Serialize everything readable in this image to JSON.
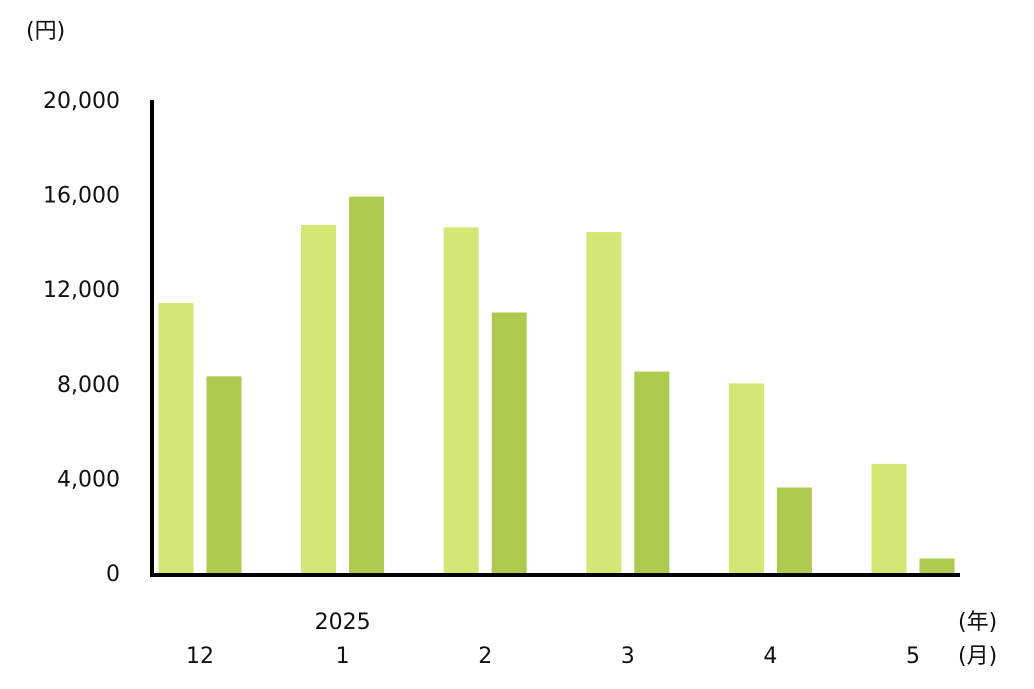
{
  "chart_data": {
    "type": "bar",
    "y_unit": "(円)",
    "x_year_unit": "(年)",
    "x_month_unit": "(月)",
    "categories": [
      "12",
      "1",
      "2",
      "3",
      "4",
      "5"
    ],
    "x_year": [
      null,
      "2025",
      null,
      null,
      null,
      null
    ],
    "series": [
      {
        "color": "#d4e673",
        "values": [
          11500,
          14800,
          14700,
          14500,
          8100,
          4700
        ]
      },
      {
        "color": "#aecb4f",
        "values": [
          8400,
          16000,
          11100,
          8600,
          3700,
          700
        ]
      }
    ],
    "ylim": [
      0,
      20000
    ],
    "yticks": [
      0,
      {
        "value": 4000,
        "label": "4,000"
      },
      {
        "value": 8000,
        "label": "8,000"
      },
      {
        "value": 12000,
        "label": "12,000"
      },
      {
        "value": 16000,
        "label": "16,000"
      },
      {
        "value": 20000,
        "label": "20,000"
      }
    ],
    "grid": false
  }
}
